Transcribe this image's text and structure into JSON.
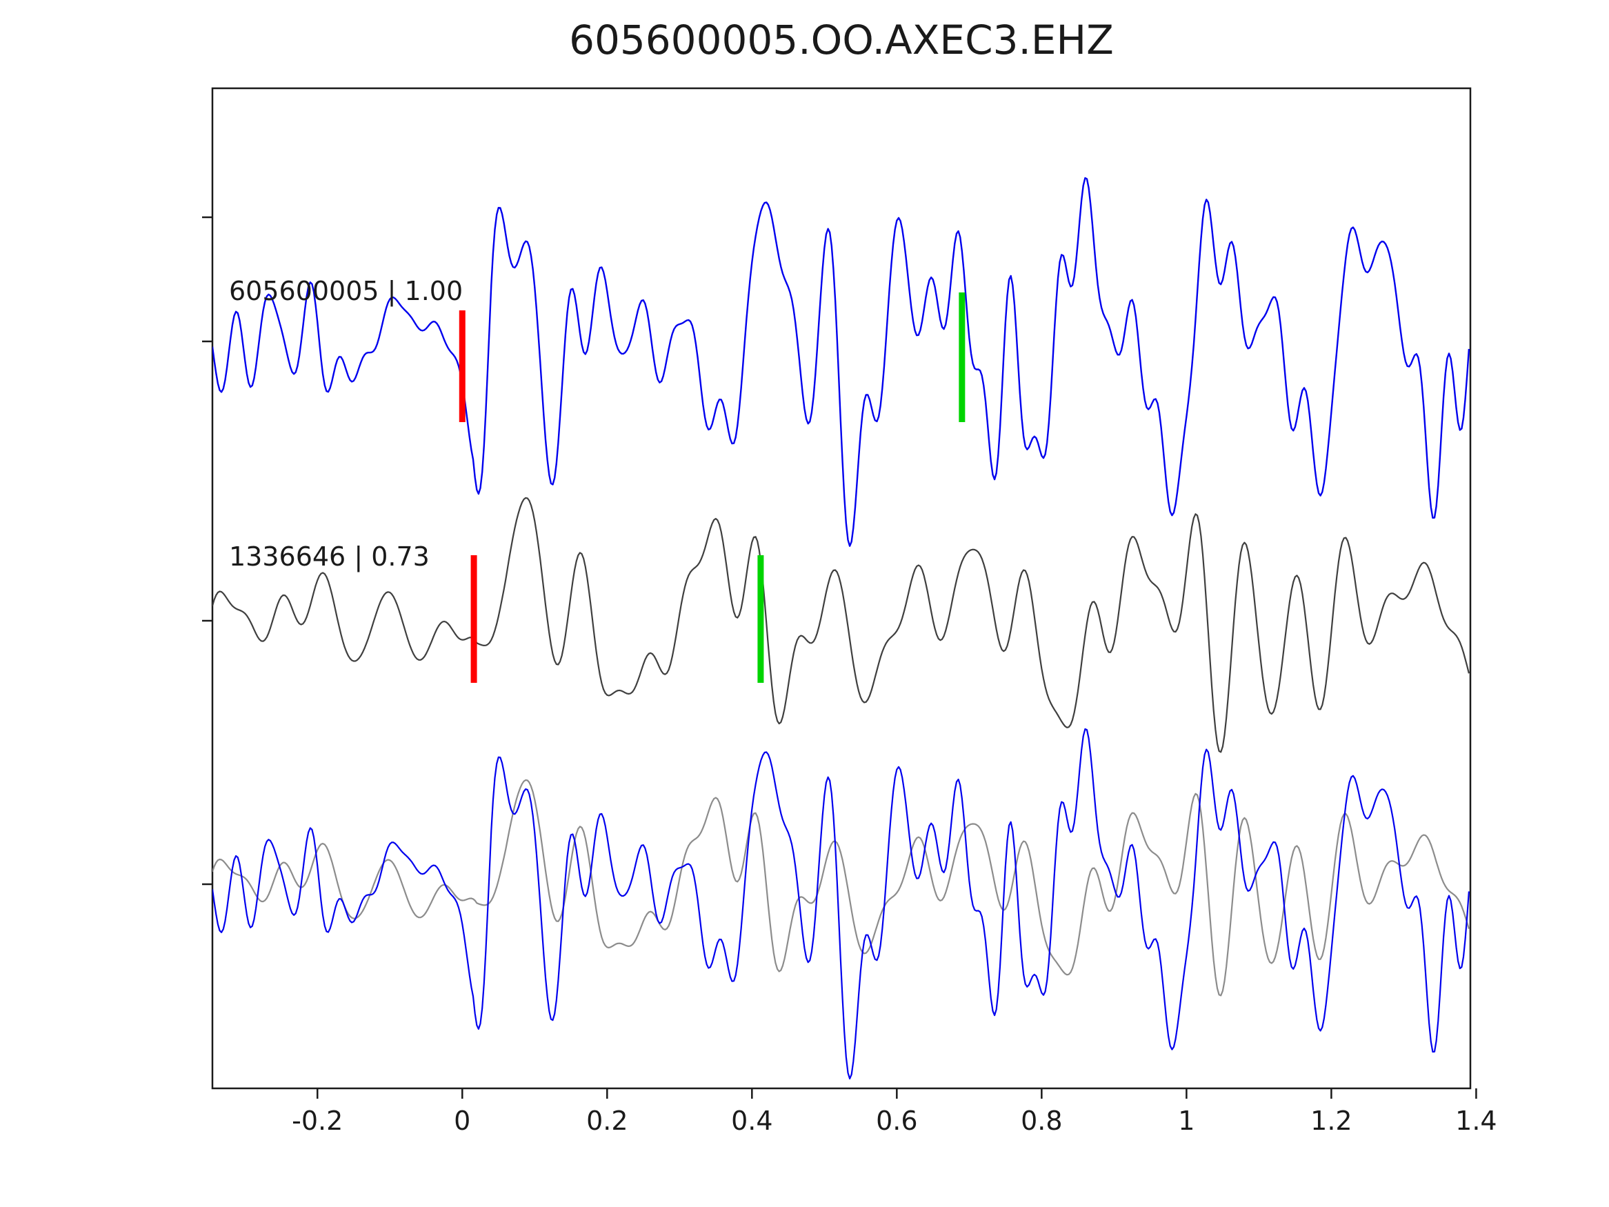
{
  "title": "605600005.OO.AXEC3.EHZ",
  "colors": {
    "detection_blue": "#0000ee",
    "template_gray": "#3f3f3f",
    "overlay_gray": "#8c8c8c",
    "pick_red": "#ff0000",
    "pick_green": "#00d400",
    "axis": "#1a1a1a",
    "background": "#ffffff"
  },
  "chart_data": {
    "type": "line",
    "title": "605600005.OO.AXEC3.EHZ",
    "xlabel": "",
    "ylabel": "",
    "xlim": [
      -0.345,
      1.392
    ],
    "x_ticks": [
      -0.2,
      0,
      0.2,
      0.4,
      0.6,
      0.8,
      1,
      1.2,
      1.4
    ],
    "x_tick_labels": [
      "-0.2",
      "0",
      "0.2",
      "0.4",
      "0.6",
      "0.8",
      "1",
      "1.2",
      "1.4"
    ],
    "grid": false,
    "legend": null,
    "description": "Matched-filter detection plot: top trace = detection waveform (blue), middle trace = template waveform (gray), bottom = overlay of both. Red bars mark reference/pick time near t=0, green bars mark correlation picks.",
    "traces": [
      {
        "id": "detection",
        "label": "605600005 | 1.00",
        "color": "#0000ee",
        "row": 0,
        "amp": 1.0,
        "line_width": 2.4,
        "label_dy": -60,
        "picks": [
          {
            "time": 0.0,
            "color": "#ff0000",
            "bar": [
              -45,
              117
            ]
          },
          {
            "time": 0.69,
            "color": "#00d400",
            "bar": [
              -71,
              117
            ]
          }
        ],
        "synth": {
          "seed": 42,
          "n": 46,
          "fmin": 4,
          "fmax": 30,
          "dt": 0.0025,
          "wavelet": {
            "t0": 0.045,
            "f": 7.5,
            "amp": 1.5,
            "tau": 0.03
          },
          "envelope": [
            [
              -0.345,
              0.42
            ],
            [
              0.015,
              0.42
            ],
            [
              0.04,
              1.1
            ],
            [
              0.12,
              1.0
            ],
            [
              1.392,
              0.95
            ]
          ]
        }
      },
      {
        "id": "template",
        "label": "1336646 | 0.73",
        "color": "#3f3f3f",
        "row": 1,
        "amp": 0.92,
        "line_width": 2.2,
        "label_dy": -80,
        "picks": [
          {
            "time": 0.016,
            "color": "#ff0000",
            "bar": [
              -95,
              90
            ]
          },
          {
            "time": 0.412,
            "color": "#00d400",
            "bar": [
              -95,
              90
            ]
          }
        ],
        "synth": {
          "seed": 7,
          "n": 40,
          "fmin": 3,
          "fmax": 22,
          "dt": 0.0025,
          "wavelet": {
            "t0": 0.05,
            "f": 9,
            "amp": 1.9,
            "tau": 0.028
          },
          "envelope": [
            [
              -0.345,
              0.3
            ],
            [
              0.02,
              0.3
            ],
            [
              0.06,
              0.9
            ],
            [
              0.2,
              0.78
            ],
            [
              1.392,
              0.62
            ]
          ]
        }
      },
      {
        "id": "overlay",
        "label": "",
        "row": 2,
        "line_width": 2.2,
        "label_dy": 0,
        "picks": [],
        "components": [
          {
            "ref": 1,
            "color": "#8c8c8c",
            "scale": 0.78
          },
          {
            "ref": 0,
            "color": "#0000ee",
            "scale": 0.95
          }
        ]
      }
    ]
  }
}
